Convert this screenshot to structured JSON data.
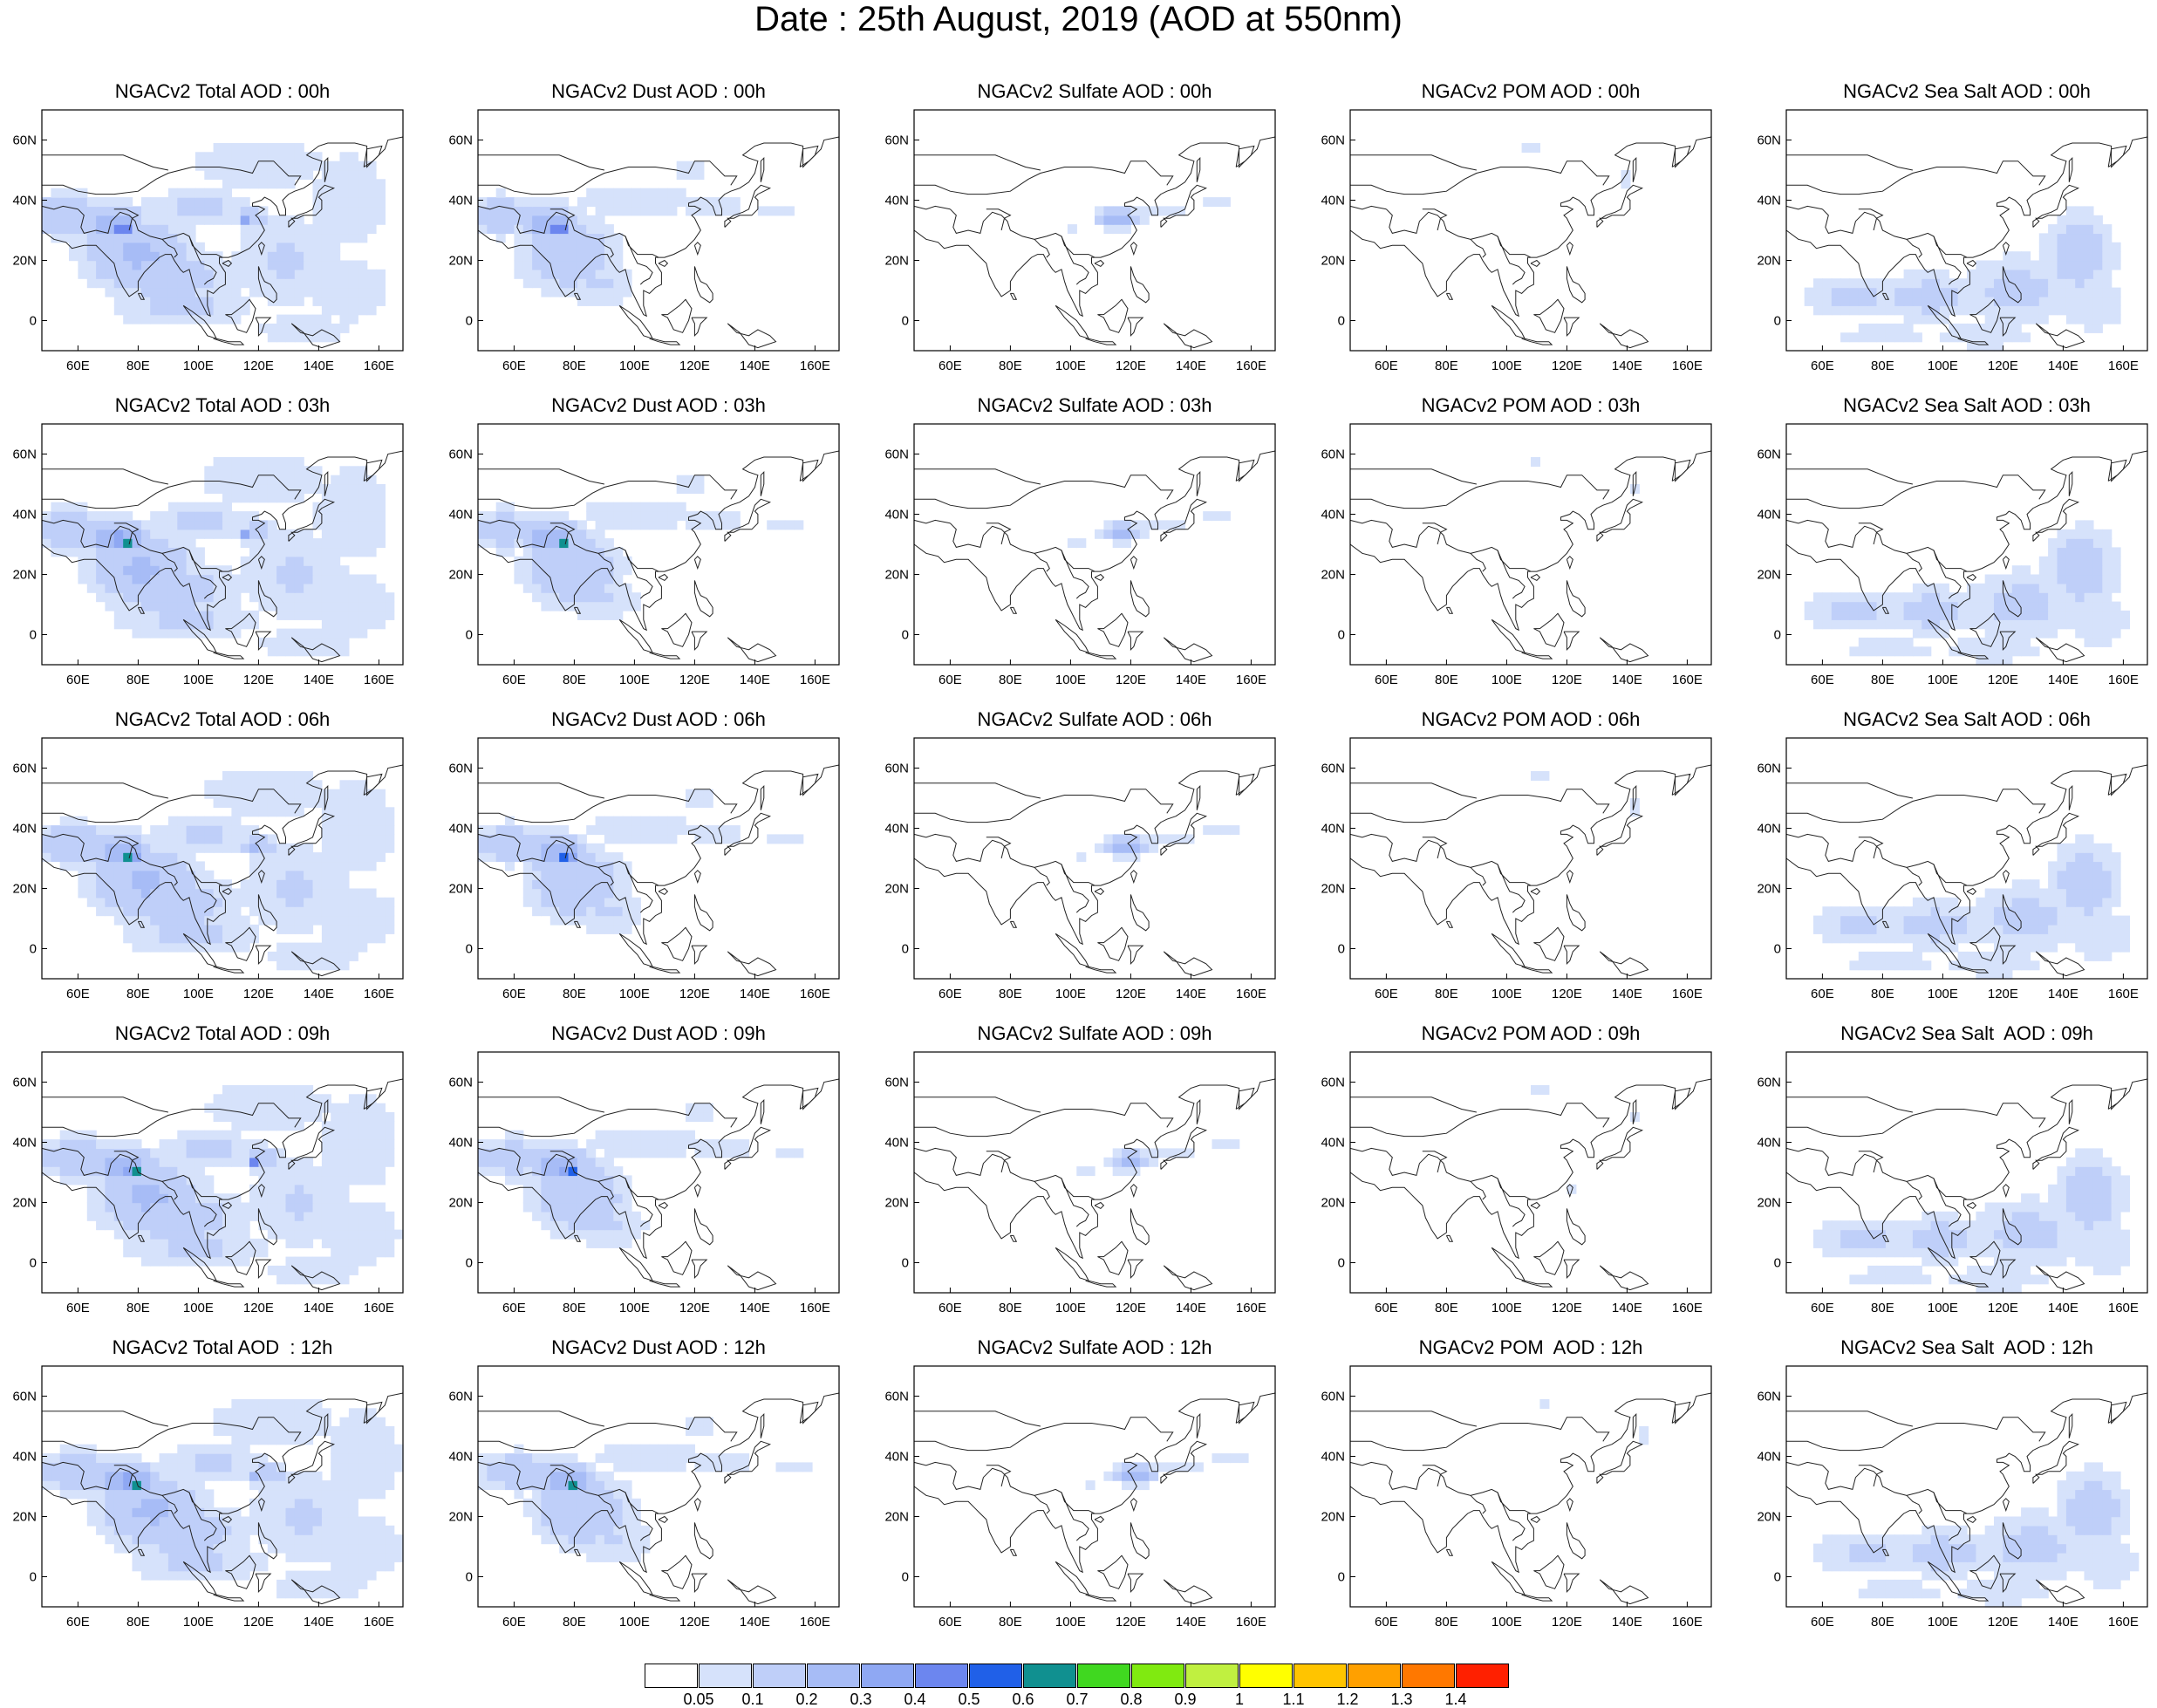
{
  "title": "Date : 25th August, 2019 (AOD at 550nm)",
  "axes": {
    "x_ticks": [
      "60E",
      "80E",
      "100E",
      "120E",
      "140E",
      "160E"
    ],
    "y_ticks": [
      "60N",
      "40N",
      "20N",
      "0"
    ],
    "lon_range": [
      48,
      168
    ],
    "lat_range": [
      -10,
      70
    ]
  },
  "rows": [
    [
      "NGACv2 Total AOD : 00h",
      "NGACv2 Dust AOD : 00h",
      "NGACv2 Sulfate AOD : 00h",
      "NGACv2 POM AOD : 00h",
      "NGACv2 Sea Salt AOD : 00h"
    ],
    [
      "NGACv2 Total AOD : 03h",
      "NGACv2 Dust AOD : 03h",
      "NGACv2 Sulfate AOD : 03h",
      "NGACv2 POM AOD : 03h",
      "NGACv2 Sea Salt AOD : 03h"
    ],
    [
      "NGACv2 Total AOD : 06h",
      "NGACv2 Dust AOD : 06h",
      "NGACv2 Sulfate AOD : 06h",
      "NGACv2 POM AOD : 06h",
      "NGACv2 Sea Salt AOD : 06h"
    ],
    [
      "NGACv2 Total AOD : 09h",
      "NGACv2 Dust AOD : 09h",
      "NGACv2 Sulfate AOD : 09h",
      "NGACv2 POM AOD : 09h",
      "NGACv2 Sea Salt  AOD : 09h"
    ],
    [
      "NGACv2 Total AOD  : 12h",
      "NGACv2 Dust AOD : 12h",
      "NGACv2 Sulfate AOD : 12h",
      "NGACv2 POM  AOD : 12h",
      "NGACv2 Sea Salt  AOD : 12h"
    ]
  ],
  "colorbar": {
    "labels": [
      "0.05",
      "0.1",
      "0.2",
      "0.3",
      "0.4",
      "0.5",
      "0.6",
      "0.7",
      "0.8",
      "0.9",
      "1",
      "1.1",
      "1.2",
      "1.3",
      "1.4"
    ],
    "colors": [
      "#ffffff",
      "#d6e2fb",
      "#bfcff9",
      "#a7bcf6",
      "#8fa8f3",
      "#6c86ef",
      "#2060e8",
      "#109090",
      "#40d820",
      "#80ea10",
      "#c0f040",
      "#ffff00",
      "#ffc400",
      "#ffa000",
      "#ff7800",
      "#ff2000"
    ]
  }
}
